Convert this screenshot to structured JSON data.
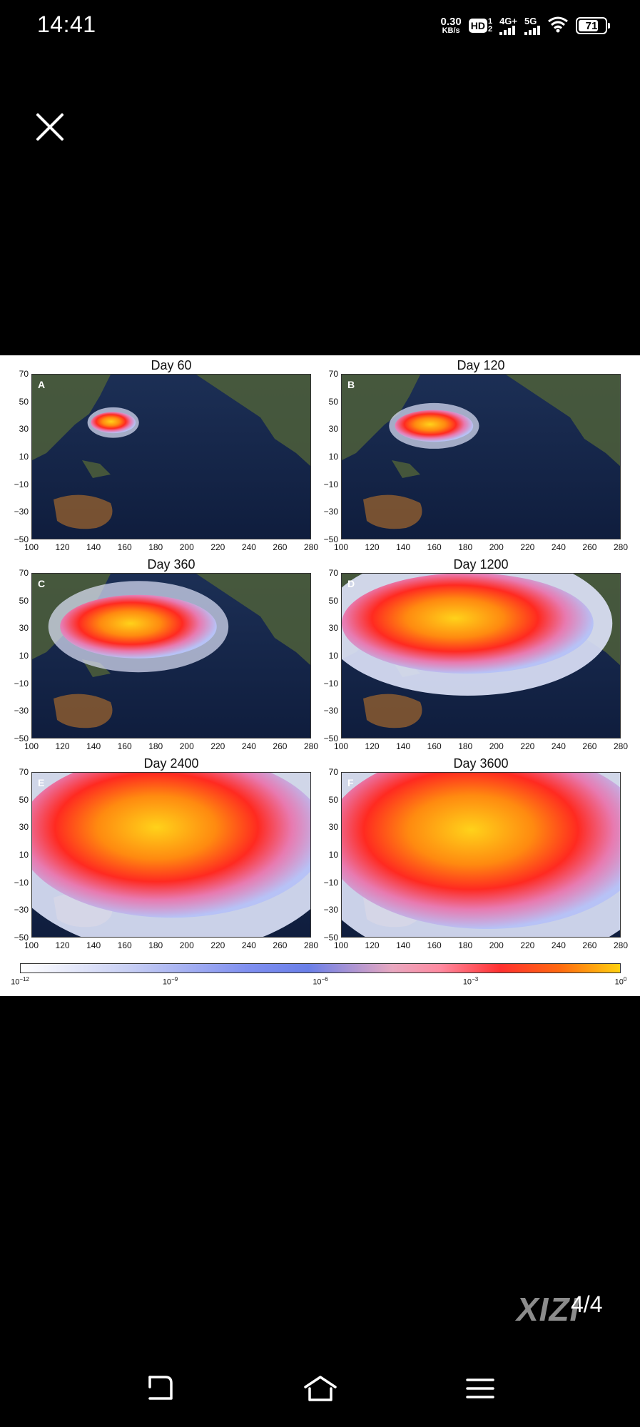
{
  "status_bar": {
    "time": "14:41",
    "net_speed_value": "0.30",
    "net_speed_unit": "KB/s",
    "hd_label": "HD",
    "hd_sub_top": "1",
    "hd_sub_bottom": "2",
    "signal1_label": "4G+",
    "signal2_label": "5G",
    "battery": "71"
  },
  "icons": {
    "close": "close-icon",
    "back": "back-icon",
    "home": "home-icon",
    "menu": "menu-icon",
    "wifi": "wifi-icon"
  },
  "figure": {
    "panels": [
      {
        "letter": "A",
        "title": "Day 60"
      },
      {
        "letter": "B",
        "title": "Day 120"
      },
      {
        "letter": "C",
        "title": "Day 360"
      },
      {
        "letter": "D",
        "title": "Day 1200"
      },
      {
        "letter": "E",
        "title": "Day 2400"
      },
      {
        "letter": "F",
        "title": "Day 3600"
      }
    ],
    "y_ticks": [
      "70",
      "50",
      "30",
      "10",
      "−10",
      "−30",
      "−50"
    ],
    "x_ticks": [
      "100",
      "120",
      "140",
      "160",
      "180",
      "200",
      "220",
      "240",
      "260",
      "280"
    ],
    "colorbar_ticks": [
      {
        "base": "10",
        "exp": "−12"
      },
      {
        "base": "10",
        "exp": "−9"
      },
      {
        "base": "10",
        "exp": "−6"
      },
      {
        "base": "10",
        "exp": "−3"
      },
      {
        "base": "10",
        "exp": "0"
      }
    ]
  },
  "watermark": "XIZI",
  "page_counter": "4/4"
}
